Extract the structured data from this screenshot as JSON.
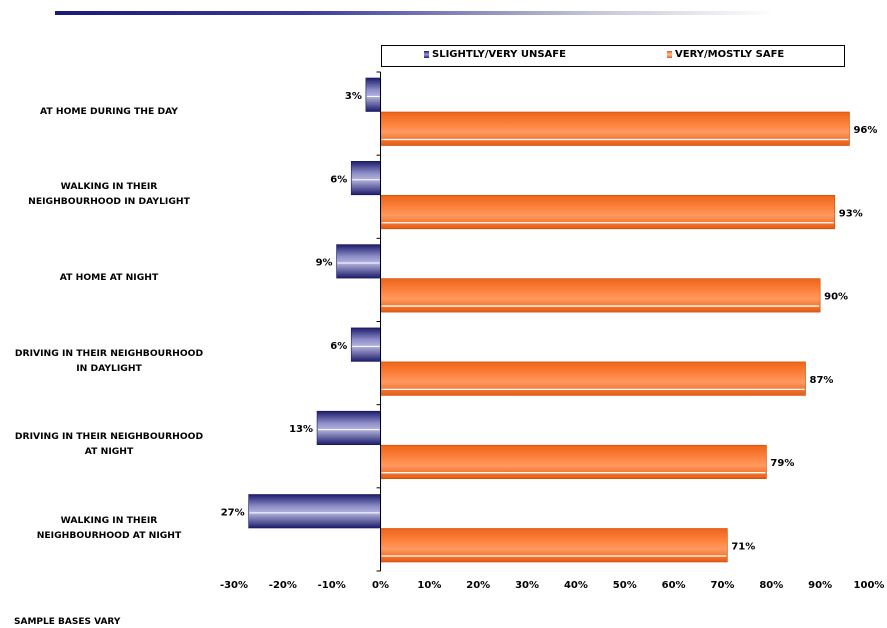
{
  "chart_data": {
    "type": "bar",
    "orientation": "horizontal",
    "categories": [
      [
        "AT HOME DURING THE DAY"
      ],
      [
        "WALKING IN THEIR",
        "NEIGHBOURHOOD IN DAYLIGHT"
      ],
      [
        "AT HOME AT NIGHT"
      ],
      [
        "DRIVING IN THEIR NEIGHBOURHOOD",
        "IN DAYLIGHT"
      ],
      [
        "DRIVING IN THEIR NEIGHBOURHOOD",
        "AT NIGHT"
      ],
      [
        "WALKING IN THEIR",
        "NEIGHBOURHOOD AT NIGHT"
      ]
    ],
    "series": [
      {
        "name": "SLIGHTLY/VERY UNSAFE",
        "values": [
          -3,
          -6,
          -9,
          -6,
          -13,
          -27
        ],
        "labels": [
          "3%",
          "6%",
          "9%",
          "6%",
          "13%",
          "27%"
        ],
        "color": "#2e2e86"
      },
      {
        "name": "VERY/MOSTLY SAFE",
        "values": [
          96,
          93,
          90,
          87,
          79,
          71
        ],
        "labels": [
          "96%",
          "93%",
          "90%",
          "87%",
          "79%",
          "71%"
        ],
        "color": "#f36f21"
      }
    ],
    "xlim": [
      -30,
      100
    ],
    "xticks": [
      -30,
      -20,
      -10,
      0,
      10,
      20,
      30,
      40,
      50,
      60,
      70,
      80,
      90,
      100
    ],
    "xtick_labels": [
      "-30%",
      "-20%",
      "-10%",
      "0%",
      "10%",
      "20%",
      "30%",
      "40%",
      "50%",
      "60%",
      "70%",
      "80%",
      "90%",
      "100%"
    ],
    "legend_position": "top",
    "grid": false
  },
  "footer": "SAMPLE BASES VARY"
}
